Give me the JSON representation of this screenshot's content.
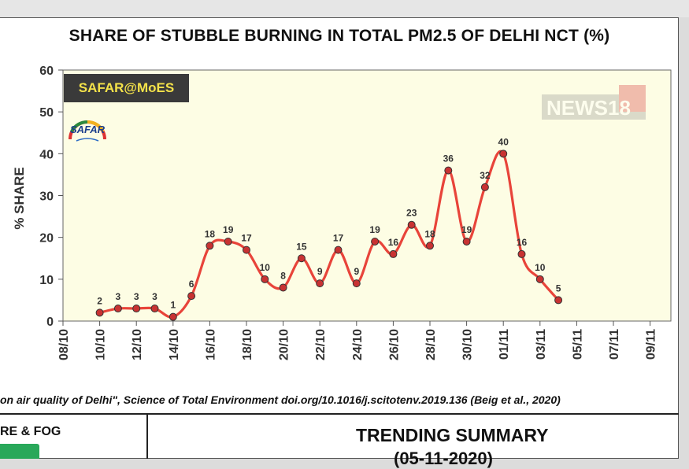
{
  "title": "SHARE OF STUBBLE BURNING IN TOTAL PM2.5 OF DELHI NCT (%)",
  "badge": "SAFAR@MoES",
  "logo_text": "SAFAR",
  "watermark": "NEWS18",
  "citation": "on air quality of Delhi\", Science of Total Environment doi.org/10.1016/j.scitotenv.2019.136 (Beig et al., 2020)",
  "bottom": {
    "left_label": "RE & FOG",
    "trend_title": "TRENDING SUMMARY",
    "trend_date": "(05-11-2020)"
  },
  "colors": {
    "plot_bg": "#fdfde4",
    "line": "#e8443a",
    "marker": "#c83232",
    "badge_bg": "#3a3a3a",
    "badge_text": "#f4e24a"
  },
  "chart_data": {
    "type": "line",
    "title": "SHARE OF STUBBLE BURNING IN TOTAL PM2.5 OF DELHI NCT (%)",
    "xlabel": "",
    "ylabel": "% SHARE",
    "ylim": [
      0,
      60
    ],
    "yticks": [
      0,
      10,
      20,
      30,
      40,
      50,
      60
    ],
    "x_ticks": [
      "08/10",
      "10/10",
      "12/10",
      "14/10",
      "16/10",
      "18/10",
      "20/10",
      "22/10",
      "24/10",
      "26/10",
      "28/10",
      "30/10",
      "01/11",
      "03/11",
      "05/11",
      "07/11",
      "09/11"
    ],
    "grid": false,
    "series": [
      {
        "name": "",
        "x": [
          "10/10",
          "11/10",
          "12/10",
          "13/10",
          "14/10",
          "15/10",
          "16/10",
          "17/10",
          "18/10",
          "19/10",
          "20/10",
          "21/10",
          "22/10",
          "23/10",
          "24/10",
          "25/10",
          "26/10",
          "27/10",
          "28/10",
          "29/10",
          "30/10",
          "31/10",
          "01/11",
          "02/11",
          "03/11",
          "04/11"
        ],
        "values": [
          2,
          3,
          3,
          3,
          1,
          6,
          18,
          19,
          17,
          10,
          8,
          15,
          9,
          17,
          9,
          19,
          16,
          23,
          18,
          36,
          19,
          32,
          40,
          16,
          10,
          5
        ]
      }
    ]
  }
}
